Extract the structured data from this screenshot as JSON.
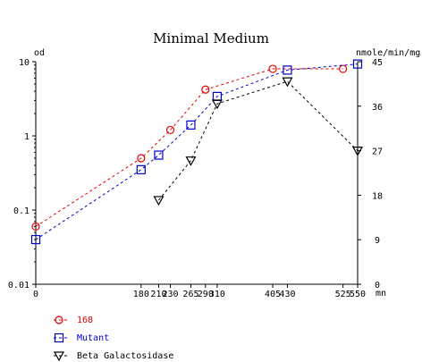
{
  "chart_data": {
    "type": "line",
    "title": "Minimal Medium",
    "xlabel": "mn",
    "ylabel_left": "od",
    "ylabel_right": "nmole/min/mg",
    "x_ticks": [
      0,
      180,
      210,
      230,
      265,
      290,
      310,
      405,
      430,
      525,
      550
    ],
    "x_tick_labels": [
      "0",
      "180",
      "210",
      "230",
      "265",
      "290",
      "310",
      "405",
      "430",
      "525",
      "550"
    ],
    "xlim": [
      0,
      550
    ],
    "y_left_scale": "log",
    "y_left_lim": [
      0.01,
      10
    ],
    "y_left_ticks": [
      0.01,
      0.1,
      1,
      10
    ],
    "y_left_tick_labels": [
      "0.01",
      "0.1",
      "1",
      "10"
    ],
    "y_right_lim": [
      0,
      45
    ],
    "y_right_ticks": [
      0,
      9,
      18,
      27,
      36,
      45
    ],
    "y_right_tick_labels": [
      "0",
      "9",
      "18",
      "27",
      "36",
      "45"
    ],
    "legend_placement": "bottom-left",
    "grid": false,
    "series": [
      {
        "name": "168",
        "axis": "left",
        "marker": "circle",
        "color": "#dd0000",
        "x": [
          0,
          180,
          230,
          290,
          405,
          525
        ],
        "y": [
          0.06,
          0.5,
          1.2,
          4.2,
          8.0,
          8.0
        ]
      },
      {
        "name": "Mutant",
        "axis": "left",
        "marker": "square",
        "color": "#0000cc",
        "x": [
          0,
          180,
          210,
          265,
          310,
          430,
          550
        ],
        "y": [
          0.04,
          0.35,
          0.55,
          1.4,
          3.4,
          7.7,
          9.3
        ]
      },
      {
        "name": "Beta Galactosidase",
        "axis": "right",
        "marker": "triangle-down",
        "color": "#000000",
        "x": [
          210,
          265,
          310,
          430,
          550
        ],
        "y": [
          17,
          25,
          36.5,
          41,
          27
        ]
      }
    ]
  }
}
